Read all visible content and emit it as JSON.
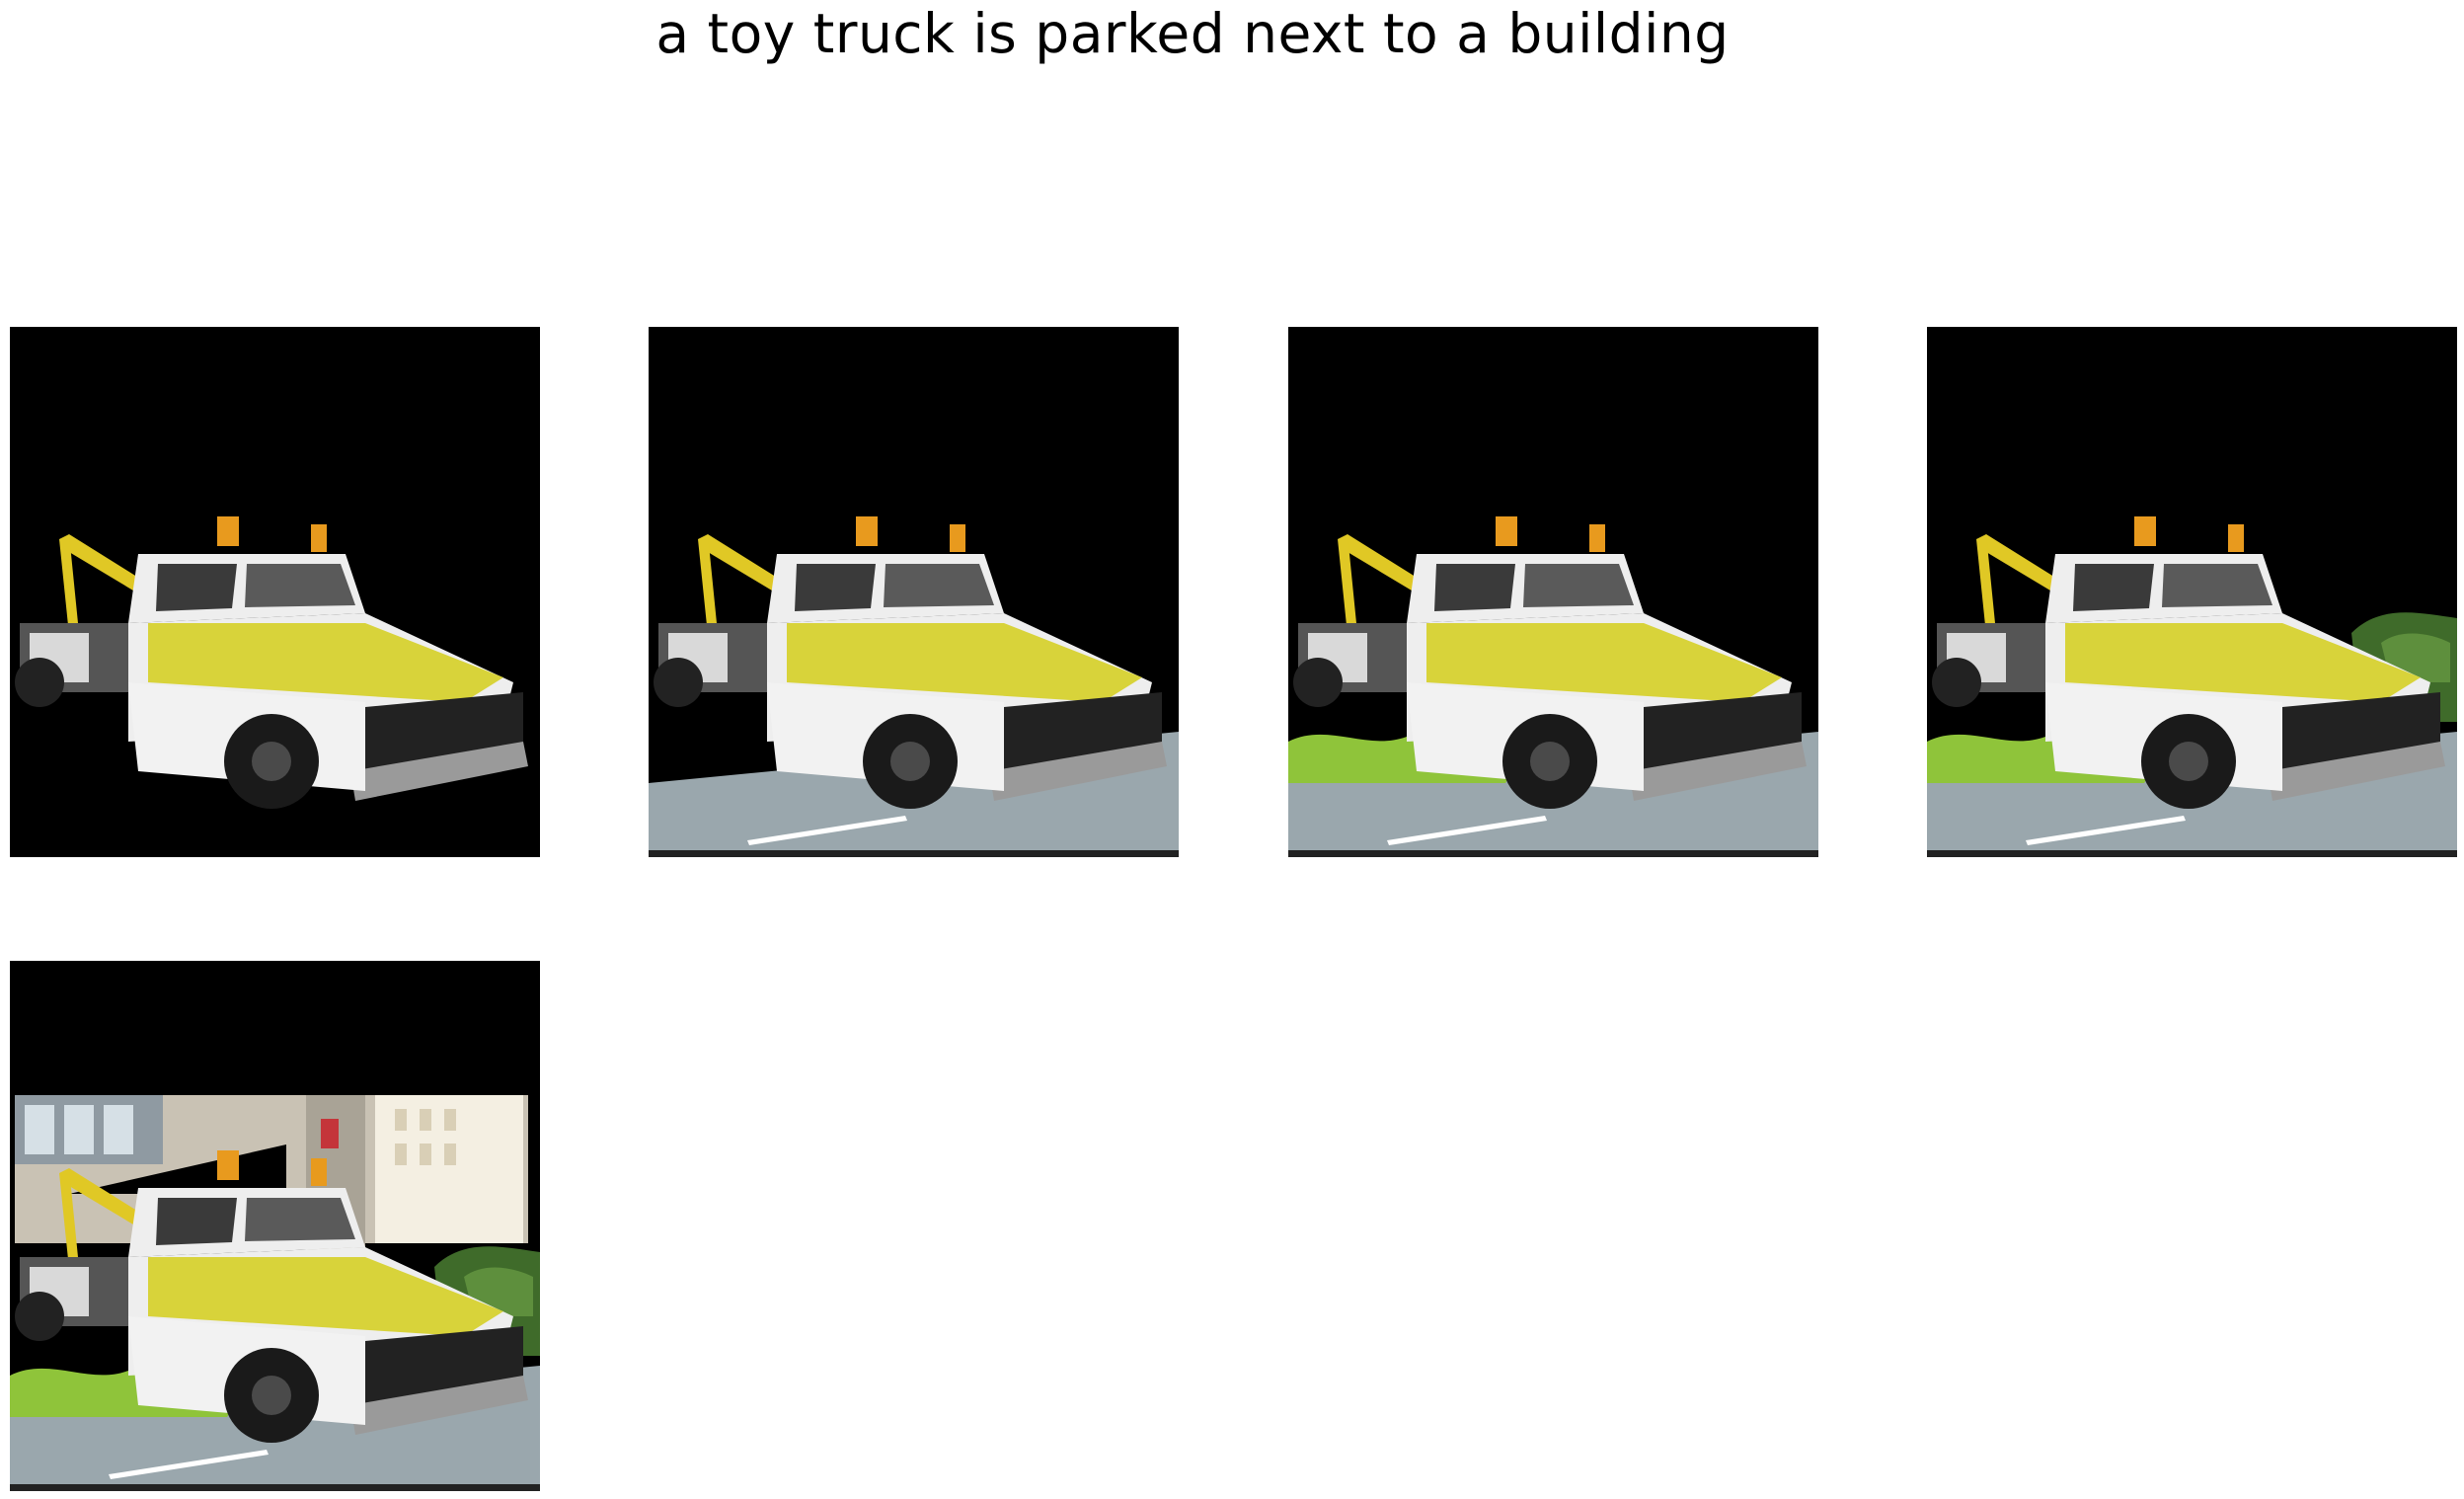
{
  "figure": {
    "title": "a toy truck is parked next to a building",
    "panel_count": 5,
    "panels": [
      {
        "background": "black",
        "has_road": false,
        "has_grass_left": false,
        "has_bushes_right": false,
        "has_building": false
      },
      {
        "background": "black",
        "has_road": true,
        "has_grass_left": false,
        "has_bushes_right": false,
        "has_building": false
      },
      {
        "background": "black",
        "has_road": true,
        "has_grass_left": true,
        "has_bushes_right": false,
        "has_building": false
      },
      {
        "background": "black",
        "has_road": true,
        "has_grass_left": true,
        "has_bushes_right": true,
        "has_building": false
      },
      {
        "background": "black",
        "has_road": true,
        "has_grass_left": true,
        "has_bushes_right": true,
        "has_building": true
      }
    ]
  },
  "colors": {
    "background": "#000000",
    "page": "#ffffff",
    "road": "#9aa7ad",
    "road_line": "#ffffff",
    "grass": "#8fc43a",
    "bush": "#3f6b2a",
    "truck_body": "#eeeeee",
    "truck_stripe": "#d8d33a",
    "boom": "#e0c825",
    "beacon": "#e89a1e",
    "building": "#c9c2b4"
  }
}
